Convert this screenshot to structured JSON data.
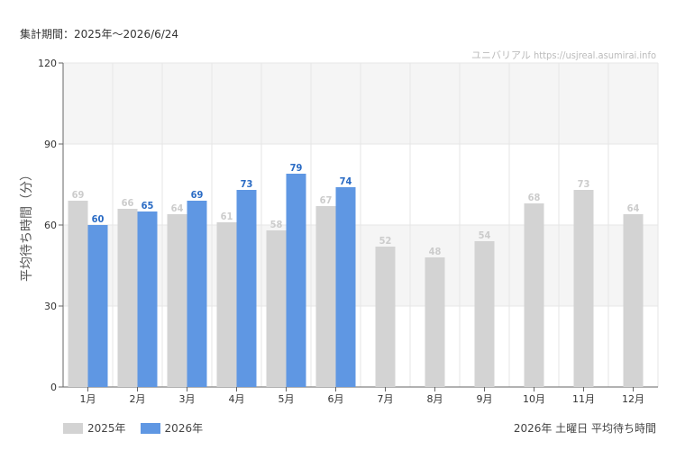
{
  "header": {
    "period": "集計期間：2025年～2026/6/24",
    "source": "ユニバリアル https://usjreal.asumirai.info"
  },
  "footer": {
    "caption": "2026年 土曜日 平均待ち時間"
  },
  "colors": {
    "series_2025": "#d3d3d3",
    "series_2026": "#5f97e3",
    "label_2025": "#cccccc",
    "label_2026": "#2a6bc4",
    "band": "#f5f5f5",
    "grid": "#e6e6e6"
  },
  "chart_data": {
    "type": "bar",
    "ylabel": "平均待ち時間（分）",
    "xlabel": "",
    "ylim": [
      0,
      120
    ],
    "yticks": [
      0,
      30,
      60,
      90,
      120
    ],
    "categories": [
      "1月",
      "2月",
      "3月",
      "4月",
      "5月",
      "6月",
      "7月",
      "8月",
      "9月",
      "10月",
      "11月",
      "12月"
    ],
    "series": [
      {
        "name": "2025年",
        "values": [
          69,
          66,
          64,
          61,
          58,
          67,
          52,
          48,
          54,
          68,
          73,
          64
        ]
      },
      {
        "name": "2026年",
        "values": [
          60,
          65,
          69,
          73,
          79,
          74,
          null,
          null,
          null,
          null,
          null,
          null
        ]
      }
    ],
    "legend": "bottom-left"
  }
}
